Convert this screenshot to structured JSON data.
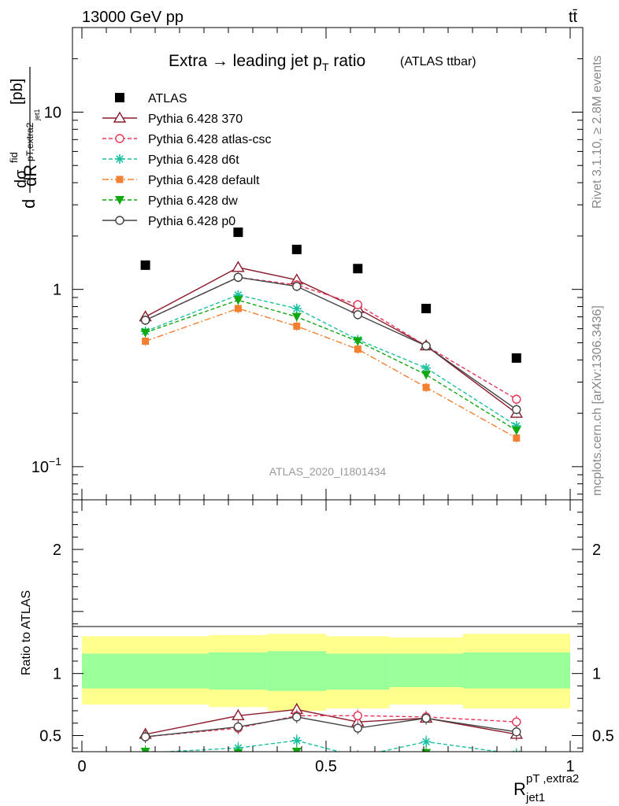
{
  "header": {
    "energy_label": "13000 GeV pp",
    "process_label": "tt̄"
  },
  "side": {
    "rivet_label": "Rivet 3.1.10, ≥ 2.8M events",
    "mcplots_label": "mcplots.cern.ch [arXiv:1306.3436]"
  },
  "chart_data": [
    {
      "type": "scatter",
      "title": "Extra → leading jet p",
      "title_sub": "T",
      "title_tail": " ratio",
      "title_note": "(ATLAS ttbar)",
      "analysis_label": "ATLAS_2020_I1801434",
      "ylabel_main": "dσ/dR [pb]",
      "ylabel_parts": {
        "d1": "d",
        "sigma": "dσ",
        "fid": "fid",
        "sub": "pT,extra2",
        "subsub": "jet1",
        "dR": "dR",
        "R": "R",
        "unit": "[pb]"
      },
      "yscale": "log",
      "ylim": [
        0.065,
        30
      ],
      "xlim": [
        -0.02,
        1.02
      ],
      "yticks": [
        {
          "v": 0.1,
          "label": "10",
          "exp": "−1"
        },
        {
          "v": 1,
          "label": "1",
          "exp": ""
        },
        {
          "v": 10,
          "label": "10",
          "exp": ""
        }
      ],
      "bin_edges": [
        0.0,
        0.26,
        0.38,
        0.5,
        0.63,
        0.78,
        1.0
      ],
      "x": [
        0.13,
        0.32,
        0.44,
        0.565,
        0.705,
        0.89
      ],
      "data": {
        "name": "ATLAS",
        "values": [
          1.37,
          2.1,
          1.68,
          1.31,
          0.78,
          0.41
        ],
        "color": "#000000"
      },
      "series": [
        {
          "name": "Pythia 6.428 370",
          "color": "#8b1a2b",
          "dash": "",
          "marker": "triangle-open",
          "values": [
            0.7,
            1.33,
            1.13,
            0.78,
            0.48,
            0.2
          ]
        },
        {
          "name": "Pythia 6.428 atlas-csc",
          "color": "#e8355a",
          "dash": "5,3",
          "marker": "circle-open",
          "values": [
            0.67,
            1.17,
            1.06,
            0.82,
            0.48,
            0.24
          ]
        },
        {
          "name": "Pythia 6.428 d6t",
          "color": "#19c0a0",
          "dash": "5,3",
          "marker": "star",
          "values": [
            0.58,
            0.93,
            0.78,
            0.52,
            0.36,
            0.17
          ]
        },
        {
          "name": "Pythia 6.428 default",
          "color": "#f28030",
          "dash": "8,3,2,3",
          "marker": "square",
          "values": [
            0.51,
            0.78,
            0.62,
            0.46,
            0.28,
            0.145
          ]
        },
        {
          "name": "Pythia 6.428 dw",
          "color": "#11a811",
          "dash": "5,3",
          "marker": "triangle-down",
          "values": [
            0.57,
            0.87,
            0.7,
            0.51,
            0.33,
            0.16
          ]
        },
        {
          "name": "Pythia 6.428 p0",
          "color": "#444444",
          "dash": "",
          "marker": "circle-open",
          "values": [
            0.67,
            1.17,
            1.04,
            0.72,
            0.48,
            0.21
          ]
        }
      ]
    },
    {
      "type": "scatter",
      "ylabel": "Ratio to ATLAS",
      "xlabel": "R",
      "xlabel_sup": "pT ,extra2",
      "xlabel_sub": "jet1",
      "ylim": [
        0.37,
        2.4
      ],
      "xlim": [
        -0.02,
        1.02
      ],
      "yticks": [
        0.5,
        1,
        2
      ],
      "xticks": [
        0,
        0.5,
        1
      ],
      "ytick_labels": [
        "0.5",
        "1",
        "2"
      ],
      "xtick_labels": [
        "0",
        "0.5",
        "1"
      ],
      "band_colors": {
        "outer": "#ffff8c",
        "inner": "#99ff99"
      },
      "bands": [
        {
          "x0": 0.0,
          "x1": 0.26,
          "inner": [
            0.88,
            1.16
          ],
          "outer": [
            0.75,
            1.3
          ]
        },
        {
          "x0": 0.26,
          "x1": 0.38,
          "inner": [
            0.87,
            1.17
          ],
          "outer": [
            0.73,
            1.31
          ]
        },
        {
          "x0": 0.38,
          "x1": 0.5,
          "inner": [
            0.86,
            1.18
          ],
          "outer": [
            0.7,
            1.32
          ]
        },
        {
          "x0": 0.5,
          "x1": 0.63,
          "inner": [
            0.87,
            1.16
          ],
          "outer": [
            0.72,
            1.3
          ]
        },
        {
          "x0": 0.63,
          "x1": 0.78,
          "inner": [
            0.89,
            1.16
          ],
          "outer": [
            0.75,
            1.29
          ]
        },
        {
          "x0": 0.78,
          "x1": 1.0,
          "inner": [
            0.88,
            1.17
          ],
          "outer": [
            0.72,
            1.32
          ]
        }
      ],
      "series": [
        {
          "name": "Pythia 6.428 370",
          "values": [
            0.51,
            0.66,
            0.71,
            0.61,
            0.64,
            0.51
          ]
        },
        {
          "name": "Pythia 6.428 atlas-csc",
          "values": [
            0.49,
            0.56,
            0.66,
            0.66,
            0.65,
            0.61
          ]
        },
        {
          "name": "Pythia 6.428 d6t",
          "values": [
            0.36,
            0.4,
            0.46,
            0.33,
            0.45,
            0.35
          ]
        },
        {
          "name": "Pythia 6.428 default",
          "values": [
            0.33,
            0.32,
            0.34,
            0.3,
            0.34,
            0.33
          ]
        },
        {
          "name": "Pythia 6.428 dw",
          "values": [
            0.37,
            0.36,
            0.37,
            0.33,
            0.36,
            0.33
          ]
        },
        {
          "name": "Pythia 6.428 p0",
          "values": [
            0.49,
            0.57,
            0.65,
            0.56,
            0.64,
            0.53
          ]
        }
      ]
    }
  ]
}
